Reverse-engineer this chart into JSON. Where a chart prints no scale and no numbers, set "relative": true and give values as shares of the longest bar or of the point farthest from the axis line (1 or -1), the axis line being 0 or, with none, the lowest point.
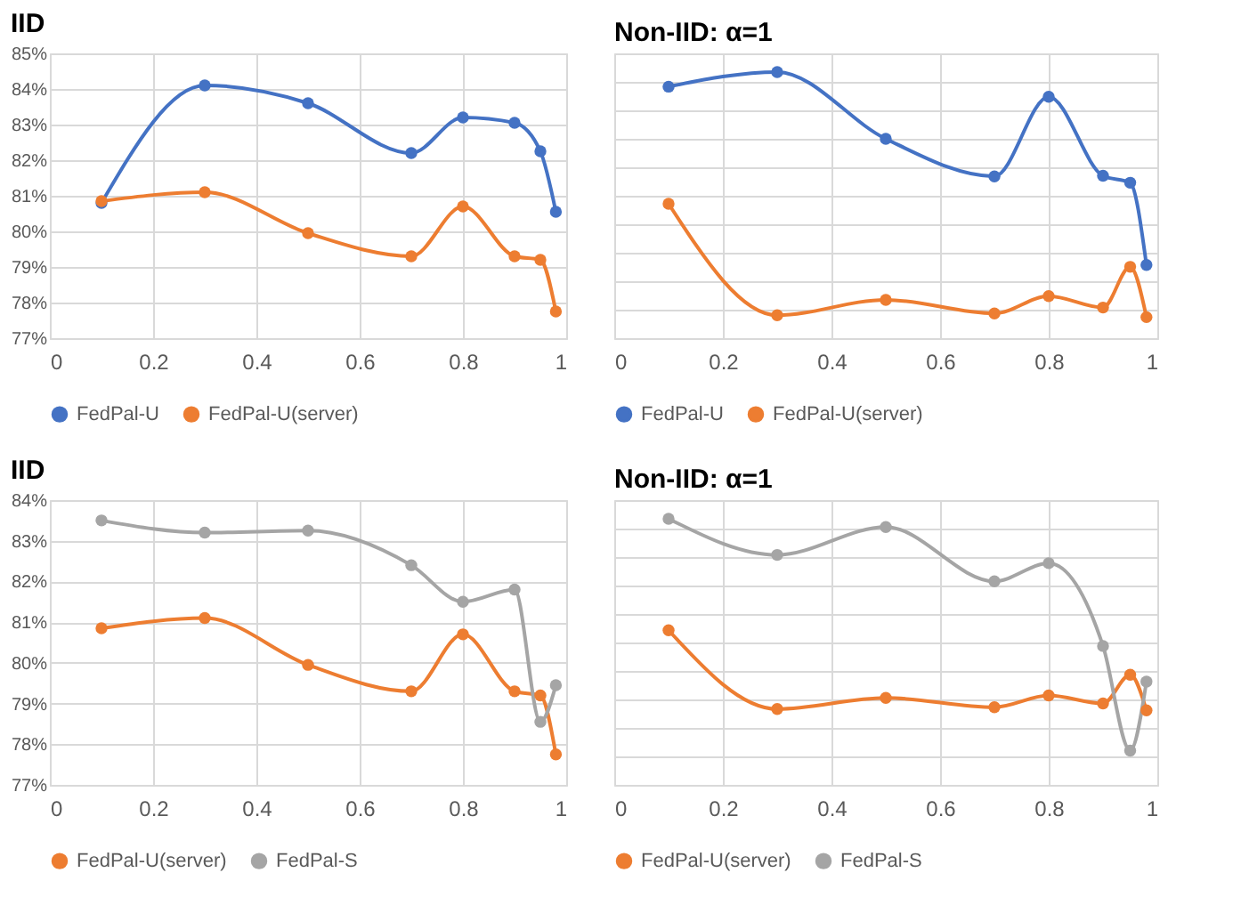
{
  "chart_data": [
    {
      "type": "line",
      "title": "IID",
      "x": [
        0.1,
        0.3,
        0.5,
        0.7,
        0.8,
        0.9,
        0.95,
        0.98
      ],
      "xlim": [
        0,
        1
      ],
      "xticks": [
        0,
        0.2,
        0.4,
        0.6,
        0.8,
        1
      ],
      "ylim": [
        77,
        85
      ],
      "yticks": [
        {
          "value": 77,
          "label": "77%"
        },
        {
          "value": 78,
          "label": "78%"
        },
        {
          "value": 79,
          "label": "79%"
        },
        {
          "value": 80,
          "label": "80%"
        },
        {
          "value": 81,
          "label": "81%"
        },
        {
          "value": 82,
          "label": "82%"
        },
        {
          "value": 83,
          "label": "83%"
        },
        {
          "value": 84,
          "label": "84%"
        },
        {
          "value": 85,
          "label": "85%"
        }
      ],
      "grid": true,
      "legend": "bottom",
      "marker": "circle",
      "line_style": "solid",
      "series": [
        {
          "name": "FedPal-U",
          "color": "#4472c4",
          "values": [
            80.8,
            84.1,
            83.6,
            82.2,
            83.2,
            83.05,
            82.25,
            80.55
          ]
        },
        {
          "name": "FedPal-U(server)",
          "color": "#ed7d31",
          "values": [
            80.85,
            81.1,
            79.95,
            79.3,
            80.7,
            79.3,
            79.2,
            77.75
          ]
        }
      ]
    },
    {
      "type": "line",
      "title": "Non-IID: α=1",
      "relative": true,
      "x": [
        0.1,
        0.3,
        0.5,
        0.7,
        0.8,
        0.9,
        0.95,
        0.98
      ],
      "xlim": [
        0,
        1
      ],
      "xticks": [
        0,
        0.2,
        0.4,
        0.6,
        0.8,
        1
      ],
      "tick_labels": "x",
      "grid": true,
      "legend": "bottom",
      "marker": "circle",
      "line_style": "solid",
      "series": [
        {
          "name": "FedPal-U",
          "color": "#4472c4",
          "values": [
            0.945,
            1,
            0.749,
            0.608,
            0.907,
            0.61,
            0.584,
            0.275
          ]
        },
        {
          "name": "FedPal-U(server)",
          "color": "#ed7d31",
          "values": [
            0.505,
            0.086,
            0.144,
            0.093,
            0.158,
            0.115,
            0.268,
            0.079
          ]
        }
      ]
    },
    {
      "type": "line",
      "title": "IID",
      "x": [
        0.1,
        0.3,
        0.5,
        0.7,
        0.8,
        0.9,
        0.95,
        0.98
      ],
      "xlim": [
        0,
        1
      ],
      "xticks": [
        0,
        0.2,
        0.4,
        0.6,
        0.8,
        1
      ],
      "ylim": [
        77,
        84
      ],
      "yticks": [
        {
          "value": 77,
          "label": "77%"
        },
        {
          "value": 78,
          "label": "78%"
        },
        {
          "value": 79,
          "label": "79%"
        },
        {
          "value": 80,
          "label": "80%"
        },
        {
          "value": 81,
          "label": "81%"
        },
        {
          "value": 82,
          "label": "82%"
        },
        {
          "value": 83,
          "label": "83%"
        },
        {
          "value": 84,
          "label": "84%"
        }
      ],
      "grid": true,
      "legend": "bottom",
      "marker": "circle",
      "line_style": "solid",
      "series": [
        {
          "name": "FedPal-U(server)",
          "color": "#ed7d31",
          "values": [
            80.85,
            81.1,
            79.95,
            79.3,
            80.7,
            79.3,
            79.2,
            77.75
          ]
        },
        {
          "name": "FedPal-S",
          "color": "#a5a5a5",
          "values": [
            83.5,
            83.2,
            83.25,
            82.4,
            81.5,
            81.8,
            78.55,
            79.45
          ]
        }
      ]
    },
    {
      "type": "line",
      "title": "Non-IID: α=1",
      "relative": true,
      "x": [
        0.1,
        0.3,
        0.5,
        0.7,
        0.8,
        0.9,
        0.95,
        0.98
      ],
      "xlim": [
        0,
        1
      ],
      "xticks": [
        0,
        0.2,
        0.4,
        0.6,
        0.8,
        1
      ],
      "tick_labels": "x",
      "grid": true,
      "legend": "bottom",
      "marker": "circle",
      "line_style": "solid",
      "series": [
        {
          "name": "FedPal-U(server)",
          "color": "#ed7d31",
          "values": [
            0.581,
            0.285,
            0.327,
            0.292,
            0.336,
            0.306,
            0.414,
            0.28
          ]
        },
        {
          "name": "FedPal-S",
          "color": "#a5a5a5",
          "values": [
            1,
            0.864,
            0.969,
            0.765,
            0.833,
            0.522,
            0.129,
            0.388
          ]
        }
      ]
    }
  ]
}
